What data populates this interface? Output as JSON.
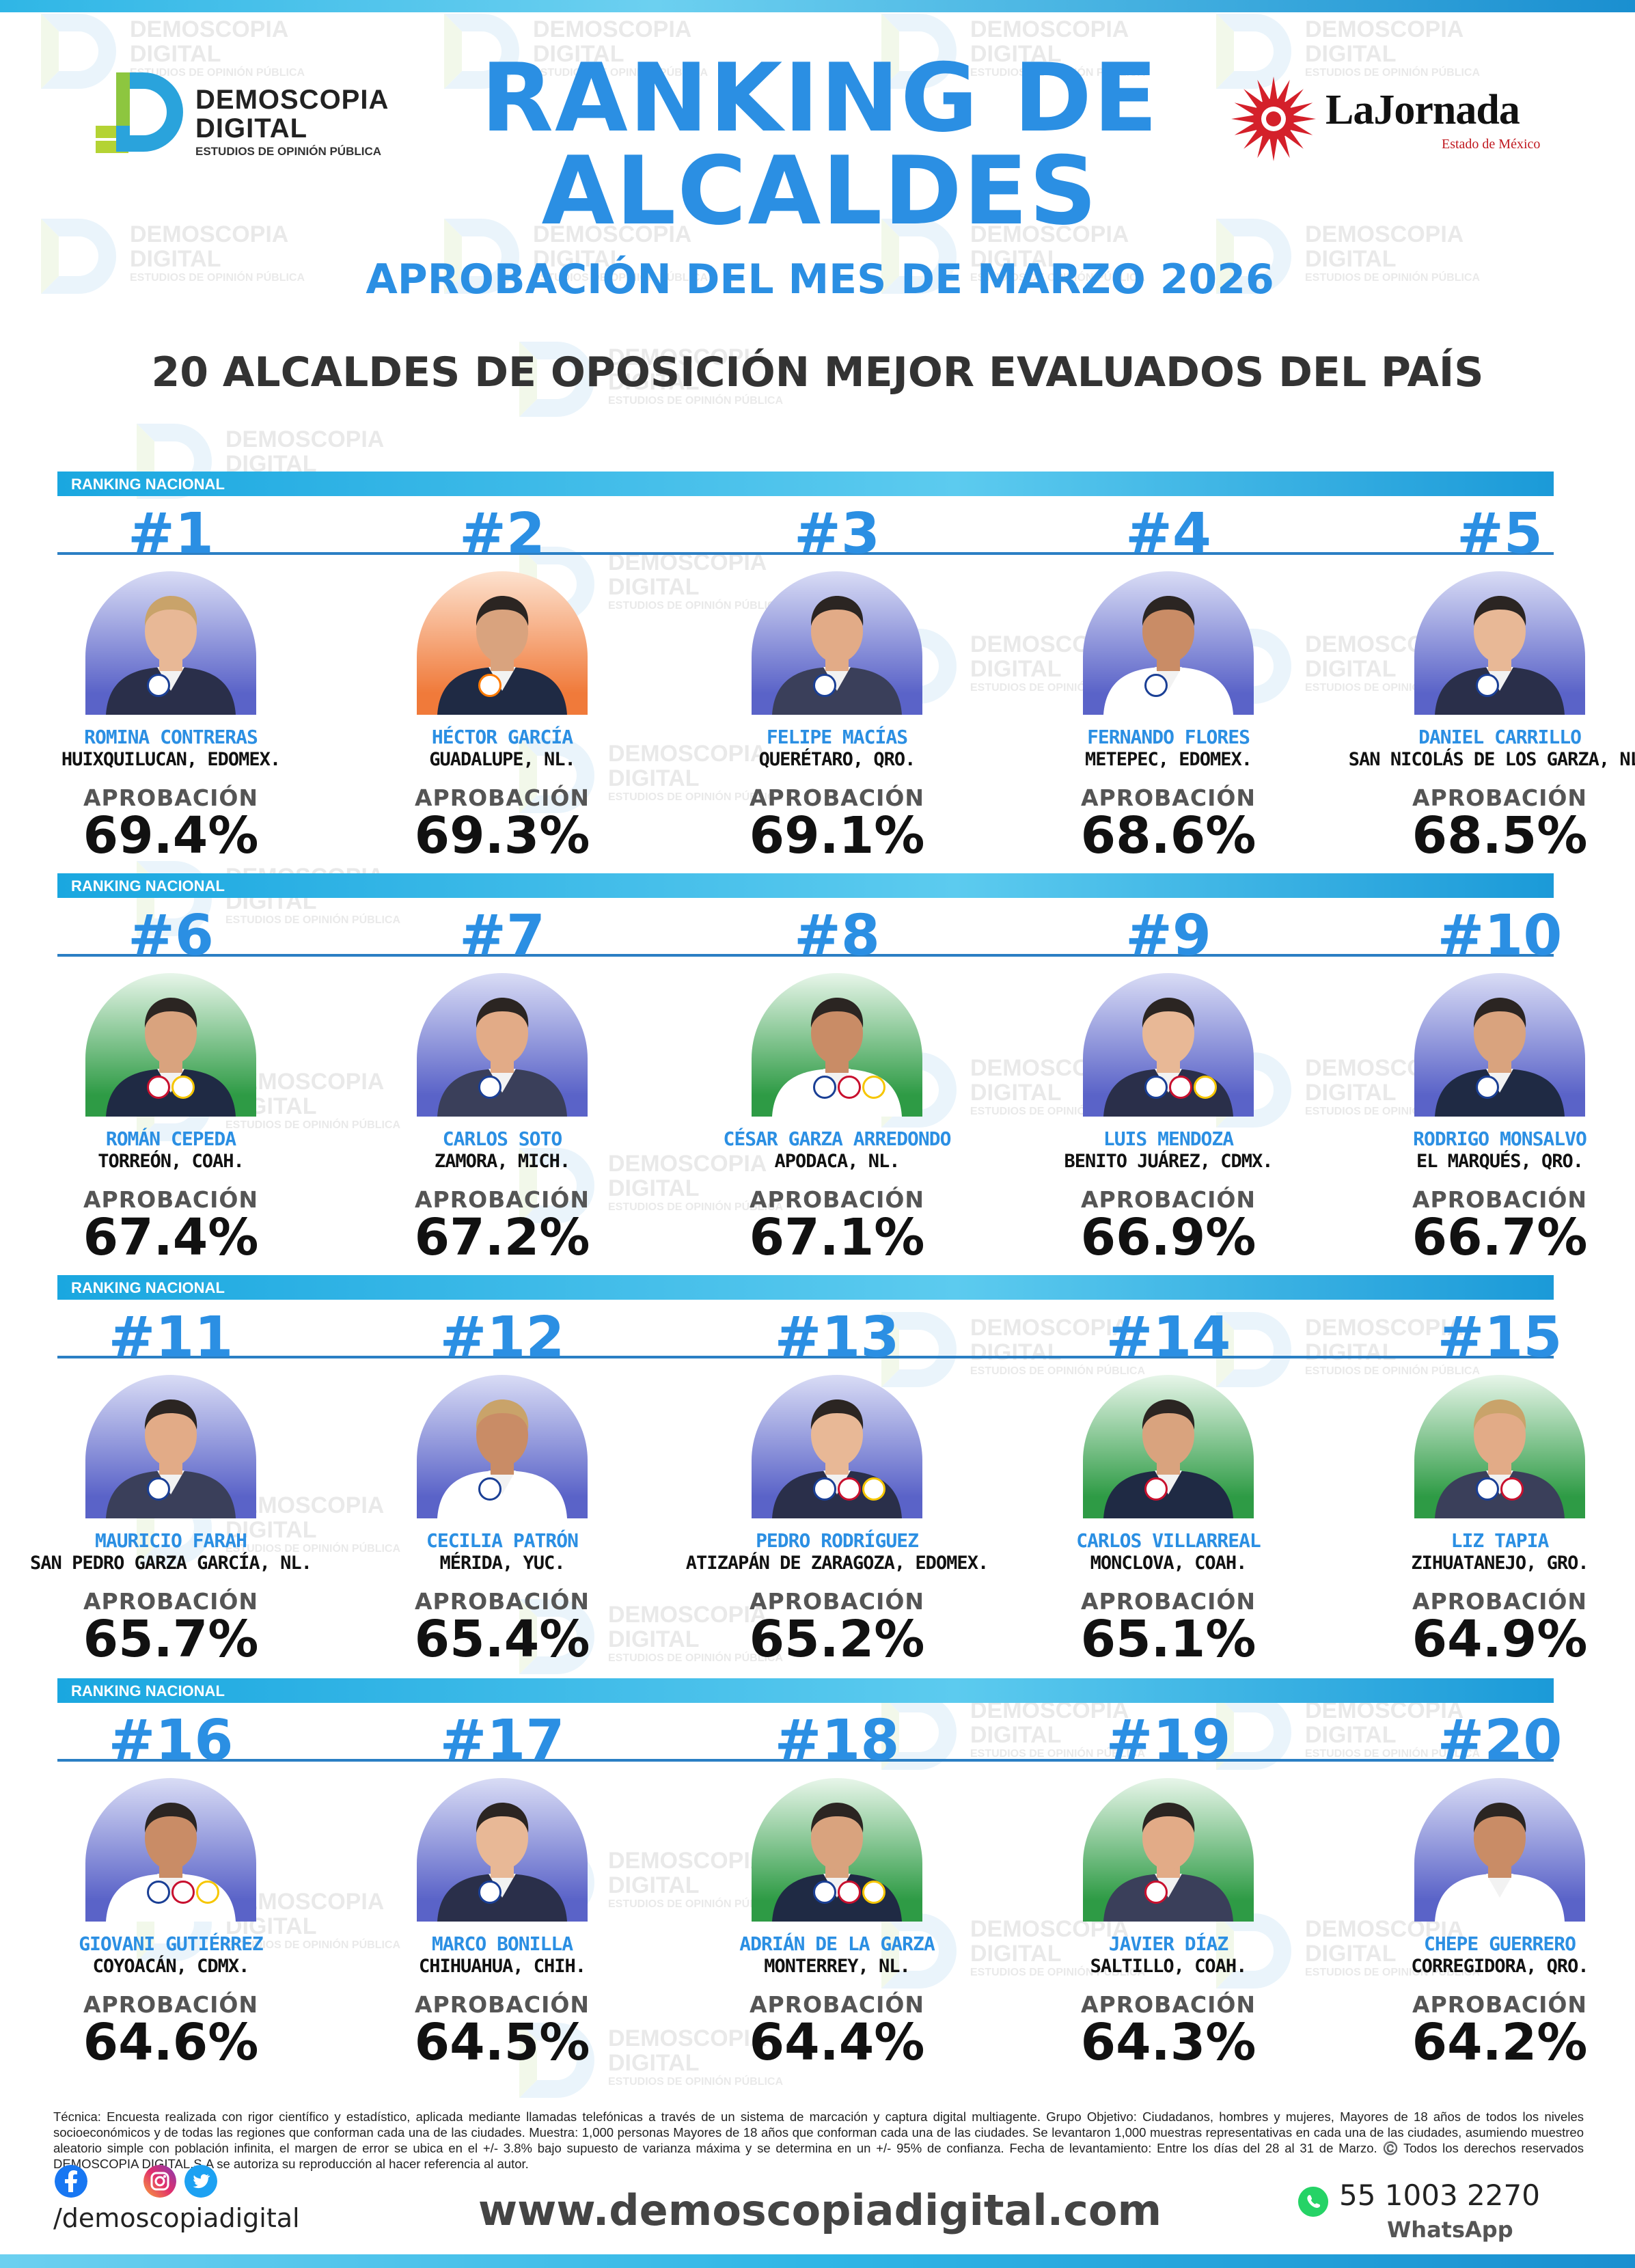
{
  "header": {
    "title_line1": "RANKING DE",
    "title_line2": "ALCALDES",
    "subtitle": "APROBACIÓN DEL MES DE MARZO 2026",
    "heading": "20 ALCALDES DE OPOSICIÓN MEJOR EVALUADOS DEL PAÍS"
  },
  "logos": {
    "demoscopia": {
      "line1": "DEMOSCOPIA",
      "line2": "DIGITAL",
      "tagline": "ESTUDIOS DE OPINIÓN PÚBLICA"
    },
    "lajornada": {
      "name": "LaJornada",
      "sub": "Estado de México"
    }
  },
  "watermark": {
    "line1": "DEMOSCOPIA",
    "line2": "DIGITAL",
    "line3": "ESTUDIOS DE OPINIÓN PÚBLICA"
  },
  "section_label": "RANKING NACIONAL",
  "approval_label": "APROBACIÓN",
  "mayors": [
    {
      "rank": "#1",
      "name": "ROMINA CONTRERAS",
      "place": "HUIXQUILUCAN, EDOMEX.",
      "approval": "69.4%",
      "bg": "blue",
      "parties": [
        "PAN"
      ]
    },
    {
      "rank": "#2",
      "name": "HÉCTOR GARCÍA",
      "place": "GUADALUPE, NL.",
      "approval": "69.3%",
      "bg": "orange",
      "parties": [
        "MC"
      ]
    },
    {
      "rank": "#3",
      "name": "FELIPE MACÍAS",
      "place": "QUERÉTARO, QRO.",
      "approval": "69.1%",
      "bg": "blue",
      "parties": [
        "PAN"
      ]
    },
    {
      "rank": "#4",
      "name": "FERNANDO FLORES",
      "place": "METEPEC, EDOMEX.",
      "approval": "68.6%",
      "bg": "blue",
      "parties": [
        "PAN"
      ]
    },
    {
      "rank": "#5",
      "name": "DANIEL CARRILLO",
      "place": "SAN NICOLÁS DE LOS GARZA, NL.",
      "approval": "68.5%",
      "bg": "blue",
      "parties": [
        "PAN"
      ]
    },
    {
      "rank": "#6",
      "name": "ROMÁN CEPEDA",
      "place": "TORREÓN, COAH.",
      "approval": "67.4%",
      "bg": "green",
      "parties": [
        "PRI",
        "PRD"
      ]
    },
    {
      "rank": "#7",
      "name": "CARLOS SOTO",
      "place": "ZAMORA, MICH.",
      "approval": "67.2%",
      "bg": "blue",
      "parties": [
        "PAN"
      ]
    },
    {
      "rank": "#8",
      "name": "CÉSAR GARZA ARREDONDO",
      "place": "APODACA, NL.",
      "approval": "67.1%",
      "bg": "green",
      "parties": [
        "PAN",
        "PRI",
        "PRD"
      ]
    },
    {
      "rank": "#9",
      "name": "LUIS MENDOZA",
      "place": "BENITO JUÁREZ, CDMX.",
      "approval": "66.9%",
      "bg": "blue",
      "parties": [
        "PAN",
        "PRI",
        "PRD"
      ]
    },
    {
      "rank": "#10",
      "name": "RODRIGO MONSALVO",
      "place": "EL MARQUÉS, QRO.",
      "approval": "66.7%",
      "bg": "blue",
      "parties": [
        "PAN"
      ]
    },
    {
      "rank": "#11",
      "name": "MAURICIO FARAH",
      "place": "SAN PEDRO GARZA GARCÍA, NL.",
      "approval": "65.7%",
      "bg": "blue",
      "parties": [
        "PAN"
      ]
    },
    {
      "rank": "#12",
      "name": "CECILIA PATRÓN",
      "place": "MÉRIDA, YUC.",
      "approval": "65.4%",
      "bg": "blue",
      "parties": [
        "PAN"
      ]
    },
    {
      "rank": "#13",
      "name": "PEDRO RODRÍGUEZ",
      "place": "ATIZAPÁN DE ZARAGOZA, EDOMEX.",
      "approval": "65.2%",
      "bg": "blue",
      "parties": [
        "PAN",
        "PRI",
        "PRD"
      ]
    },
    {
      "rank": "#14",
      "name": "CARLOS VILLARREAL",
      "place": "MONCLOVA, COAH.",
      "approval": "65.1%",
      "bg": "green",
      "parties": [
        "PRI"
      ]
    },
    {
      "rank": "#15",
      "name": "LIZ TAPIA",
      "place": "ZIHUATANEJO, GRO.",
      "approval": "64.9%",
      "bg": "green",
      "parties": [
        "PAN",
        "PRI"
      ]
    },
    {
      "rank": "#16",
      "name": "GIOVANI GUTIÉRREZ",
      "place": "COYOACÁN, CDMX.",
      "approval": "64.6%",
      "bg": "blue",
      "parties": [
        "PAN",
        "PRI",
        "PRD"
      ]
    },
    {
      "rank": "#17",
      "name": "MARCO BONILLA",
      "place": "CHIHUAHUA, CHIH.",
      "approval": "64.5%",
      "bg": "blue",
      "parties": [
        "PAN"
      ]
    },
    {
      "rank": "#18",
      "name": "ADRIÁN DE LA GARZA",
      "place": "MONTERREY, NL.",
      "approval": "64.4%",
      "bg": "green",
      "parties": [
        "PAN",
        "PRI",
        "PRD"
      ]
    },
    {
      "rank": "#19",
      "name": "JAVIER DÍAZ",
      "place": "SALTILLO, COAH.",
      "approval": "64.3%",
      "bg": "green",
      "parties": [
        "PRI"
      ]
    },
    {
      "rank": "#20",
      "name": "CHEPE GUERRERO",
      "place": "CORREGIDORA, QRO.",
      "approval": "64.2%",
      "bg": "blue",
      "parties": []
    }
  ],
  "footer": {
    "technical_note": "Técnica: Encuesta realizada con rigor científico y estadístico, aplicada mediante llamadas telefónicas a través de un sistema de marcación y captura digital multiagente. Grupo Objetivo: Ciudadanos, hombres y mujeres, Mayores de 18 años de todos los niveles socioeconómicos y de todas las regiones que conforman cada una de las ciudades. Muestra: 1,000 personas Mayores de 18 años que conforman cada una de las ciudades. Se levantaron 1,000 muestras representativas en cada una de las ciudades, asumiendo muestreo aleatorio simple con población infinita, el margen de error se ubica en el +/- 3.8% bajo supuesto de varianza máxima y se determina en un +/- 95% de confianza. Fecha de levantamiento: Entre los días del 28 al 31 de Marzo. ©️ Todos los derechos reservados DEMOSCOPIA DIGITAL,S.A se autoriza su reproducción al hacer referencia al autor.",
    "handle": "/demoscopiadigital",
    "website": "www.demoscopiadigital.com",
    "phone": "55 1003 2270",
    "whatsapp_label": "WhatsApp"
  }
}
